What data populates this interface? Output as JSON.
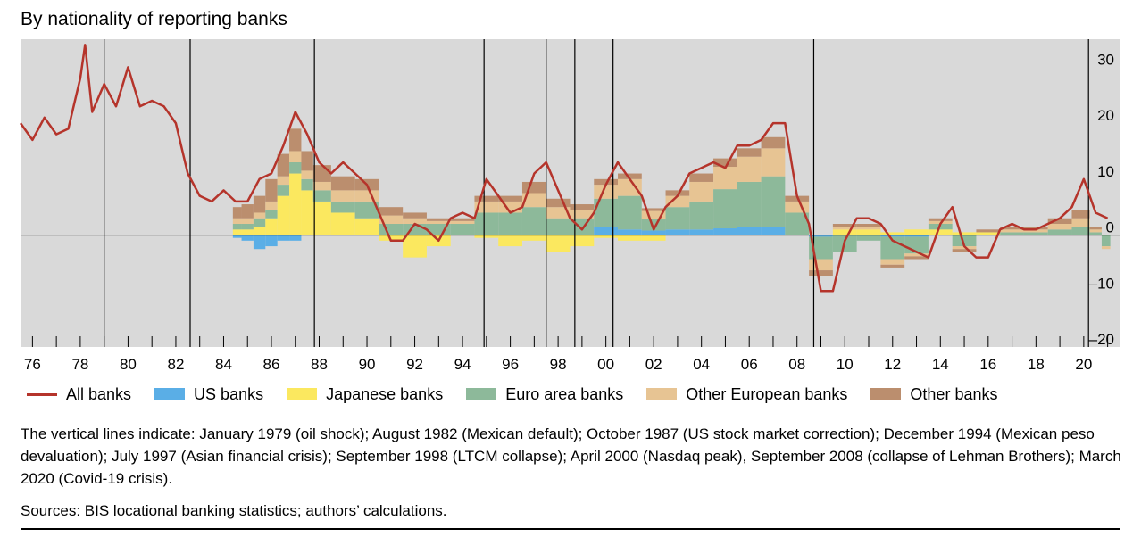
{
  "chart_data": {
    "type": "area",
    "title": "By nationality of reporting banks",
    "xlabel": "",
    "ylabel": "",
    "ylim": [
      -20,
      35
    ],
    "y_ticks": [
      30,
      20,
      10,
      0,
      -10,
      -20
    ],
    "y_tick_labels": [
      "30",
      "20",
      "10",
      "0",
      "–10",
      "–20"
    ],
    "x_range": [
      1975.5,
      2021.5
    ],
    "x_ticks": [
      1976,
      1978,
      1980,
      1982,
      1984,
      1986,
      1988,
      1990,
      1992,
      1994,
      1996,
      1998,
      2000,
      2002,
      2004,
      2006,
      2008,
      2010,
      2012,
      2014,
      2016,
      2018,
      2020
    ],
    "x_tick_labels": [
      "76",
      "78",
      "80",
      "82",
      "84",
      "86",
      "88",
      "90",
      "92",
      "94",
      "96",
      "98",
      "00",
      "02",
      "04",
      "06",
      "08",
      "10",
      "12",
      "14",
      "16",
      "18",
      "20"
    ],
    "grid": false,
    "legend_position": "bottom",
    "stack_order": [
      "US banks",
      "Japanese banks",
      "Euro area banks",
      "Other European banks",
      "Other banks"
    ],
    "series": [
      {
        "name": "All banks",
        "kind": "line",
        "color": "#b5342b",
        "x": [
          1975.5,
          1976,
          1976.5,
          1977,
          1977.5,
          1978,
          1978.2,
          1978.5,
          1979,
          1979.5,
          1980,
          1980.5,
          1981,
          1981.5,
          1982,
          1982.5,
          1983,
          1983.5,
          1984,
          1984.5,
          1985,
          1985.5,
          1986,
          1986.5,
          1987,
          1987.5,
          1988,
          1988.5,
          1989,
          1989.5,
          1990,
          1990.5,
          1991,
          1991.5,
          1992,
          1992.5,
          1993,
          1993.5,
          1994,
          1994.5,
          1995,
          1995.5,
          1996,
          1996.5,
          1997,
          1997.5,
          1998,
          1998.5,
          1999,
          1999.5,
          2000,
          2000.5,
          2001,
          2001.5,
          2002,
          2002.5,
          2003,
          2003.5,
          2004,
          2004.5,
          2005,
          2005.5,
          2006,
          2006.5,
          2007,
          2007.5,
          2008,
          2008.5,
          2009,
          2009.5,
          2010,
          2010.5,
          2011,
          2011.5,
          2012,
          2012.5,
          2013,
          2013.5,
          2014,
          2014.5,
          2015,
          2015.5,
          2016,
          2016.5,
          2017,
          2017.5,
          2018,
          2018.5,
          2019,
          2019.5,
          2020,
          2020.5,
          2021
        ],
        "values": [
          20,
          17,
          21,
          18,
          19,
          28,
          34,
          22,
          27,
          23,
          30,
          23,
          24,
          23,
          20,
          11,
          7,
          6,
          8,
          6,
          6,
          10,
          11,
          16,
          22,
          18,
          13,
          11,
          13,
          11,
          9,
          4,
          -1,
          -1,
          2,
          1,
          -1,
          3,
          4,
          3,
          10,
          7,
          4,
          5,
          11,
          13,
          8,
          3,
          1,
          4,
          9,
          13,
          10,
          7,
          1,
          5,
          7,
          11,
          12,
          13,
          12,
          16,
          16,
          17,
          20,
          20,
          7,
          2,
          -10,
          -10,
          -1,
          3,
          3,
          2,
          -1,
          -2,
          -3,
          -4,
          2,
          5,
          -2,
          -4,
          -4,
          1,
          2,
          1,
          1,
          2,
          3,
          5,
          10,
          4,
          3
        ]
      },
      {
        "name": "US banks",
        "kind": "stack",
        "color": "#5aaee6",
        "x": [
          1984.5,
          1985,
          1985.5,
          1986,
          1986.5,
          1987,
          1987.5,
          1988,
          1989,
          1990,
          1991,
          1992,
          1993,
          1994,
          1995,
          1996,
          1997,
          1998,
          1999,
          2000,
          2001,
          2002,
          2003,
          2004,
          2005,
          2006,
          2007,
          2008,
          2009,
          2010,
          2011,
          2012,
          2013,
          2014,
          2015,
          2016,
          2017,
          2018,
          2019,
          2020,
          2020.5,
          2021
        ],
        "values": [
          -0.5,
          -1,
          -2.5,
          -2,
          -1,
          -1,
          0,
          0,
          0,
          0,
          0,
          0,
          0,
          0,
          0,
          0,
          0,
          0,
          0,
          1.5,
          1,
          0.8,
          1,
          1,
          1.2,
          1.5,
          1.5,
          0,
          -0.3,
          0,
          0,
          -0.3,
          -0.3,
          0,
          0,
          0,
          0,
          0,
          0,
          0,
          0,
          0
        ]
      },
      {
        "name": "Japanese banks",
        "kind": "stack",
        "color": "#fbe85f",
        "x": [
          1984.5,
          1985,
          1985.5,
          1986,
          1986.5,
          1987,
          1987.5,
          1988,
          1989,
          1990,
          1991,
          1992,
          1993,
          1994,
          1995,
          1996,
          1997,
          1998,
          1999,
          2000,
          2001,
          2002,
          2003,
          2004,
          2005,
          2006,
          2007,
          2008,
          2009,
          2010,
          2011,
          2012,
          2013,
          2014,
          2015,
          2016,
          2017,
          2018,
          2019,
          2020,
          2020.5,
          2021
        ],
        "values": [
          1,
          1,
          1.5,
          3,
          7,
          11,
          8,
          6,
          4,
          3,
          -1,
          -4,
          -2,
          0,
          -0.5,
          -2,
          -1,
          -3,
          -2,
          -0.5,
          -1,
          -1,
          0,
          0,
          0,
          0,
          0,
          0,
          0,
          1,
          1,
          0.5,
          1,
          1,
          0.5,
          0.5,
          0,
          0,
          0,
          0,
          0,
          0
        ]
      },
      {
        "name": "Euro area banks",
        "kind": "stack",
        "color": "#8db99a",
        "x": [
          1984.5,
          1985,
          1985.5,
          1986,
          1986.5,
          1987,
          1987.5,
          1988,
          1989,
          1990,
          1991,
          1992,
          1993,
          1994,
          1995,
          1996,
          1997,
          1998,
          1999,
          2000,
          2001,
          2002,
          2003,
          2004,
          2005,
          2006,
          2007,
          2008,
          2009,
          2010,
          2011,
          2012,
          2013,
          2014,
          2015,
          2016,
          2017,
          2018,
          2019,
          2020,
          2020.5,
          2021
        ],
        "values": [
          1,
          1,
          1.5,
          1.5,
          2,
          2,
          2,
          2,
          2,
          3,
          2,
          2,
          2,
          2,
          4,
          4,
          5,
          3,
          3,
          5,
          6,
          2,
          4,
          5,
          7,
          8,
          9,
          4,
          -4,
          -3,
          -1,
          -4,
          -3,
          1,
          -2,
          0,
          0.5,
          0.5,
          1,
          1.5,
          0.5,
          -2
        ]
      },
      {
        "name": "Other European banks",
        "kind": "stack",
        "color": "#e7c493",
        "x": [
          1984.5,
          1985,
          1985.5,
          1986,
          1986.5,
          1987,
          1987.5,
          1988,
          1989,
          1990,
          1991,
          1992,
          1993,
          1994,
          1995,
          1996,
          1997,
          1998,
          1999,
          2000,
          2001,
          2002,
          2003,
          2004,
          2005,
          2006,
          2007,
          2008,
          2009,
          2010,
          2011,
          2012,
          2013,
          2014,
          2015,
          2016,
          2017,
          2018,
          2019,
          2020,
          2020.5,
          2021
        ],
        "values": [
          1,
          1,
          1,
          1.5,
          1.5,
          2,
          1.5,
          1.5,
          2,
          2,
          1.5,
          1,
          0.5,
          0.5,
          2,
          2,
          2.5,
          2,
          1.5,
          2.5,
          3,
          1.5,
          2,
          3.5,
          4,
          4.5,
          5,
          2,
          -2,
          0.5,
          0.5,
          -1,
          -0.5,
          0.5,
          -0.5,
          0,
          0.5,
          0.5,
          1,
          1.5,
          0.5,
          -0.5
        ]
      },
      {
        "name": "Other banks",
        "kind": "stack",
        "color": "#bb8e6e",
        "x": [
          1984.5,
          1985,
          1985.5,
          1986,
          1986.5,
          1987,
          1987.5,
          1988,
          1989,
          1990,
          1991,
          1992,
          1993,
          1994,
          1995,
          1996,
          1997,
          1998,
          1999,
          2000,
          2001,
          2002,
          2003,
          2004,
          2005,
          2006,
          2007,
          2008,
          2009,
          2010,
          2011,
          2012,
          2013,
          2014,
          2015,
          2016,
          2017,
          2018,
          2019,
          2020,
          2020.5,
          2021
        ],
        "values": [
          2,
          2.5,
          3,
          4,
          4,
          4,
          3.5,
          3,
          2.5,
          2,
          1.5,
          1,
          0.5,
          0.5,
          1,
          1,
          2,
          1.5,
          1,
          1,
          1,
          0.5,
          1,
          1.5,
          1.5,
          1.5,
          2,
          1,
          -1,
          0.5,
          0.5,
          -0.5,
          -0.5,
          0.5,
          -0.5,
          0.5,
          0.5,
          0.5,
          1,
          1.5,
          0.5,
          0
        ]
      }
    ],
    "event_lines": [
      1979.0,
      1982.6,
      1987.8,
      1994.9,
      1997.5,
      1998.7,
      2000.3,
      2008.7,
      2020.2
    ]
  },
  "legend": {
    "all_banks": "All banks",
    "us_banks": "US banks",
    "japanese_banks": "Japanese banks",
    "euro_area_banks": "Euro area banks",
    "other_european_banks": "Other European banks",
    "other_banks": "Other banks"
  },
  "note": "The vertical lines indicate: January 1979 (oil shock); August 1982 (Mexican default); October 1987 (US stock market correction); December 1994 (Mexican peso devaluation); July 1997 (Asian financial crisis); September 1998 (LTCM collapse); April 2000 (Nasdaq peak), September 2008 (collapse of Lehman Brothers); March 2020 (Covid-19 crisis).",
  "sources": "Sources: BIS locational banking statistics; authors’ calculations.",
  "colors": {
    "plot_background": "#d9d9d9",
    "all_banks": "#b5342b",
    "us_banks": "#5aaee6",
    "japanese_banks": "#fbe85f",
    "euro_area_banks": "#8db99a",
    "other_european_banks": "#e7c493",
    "other_banks": "#bb8e6e"
  }
}
